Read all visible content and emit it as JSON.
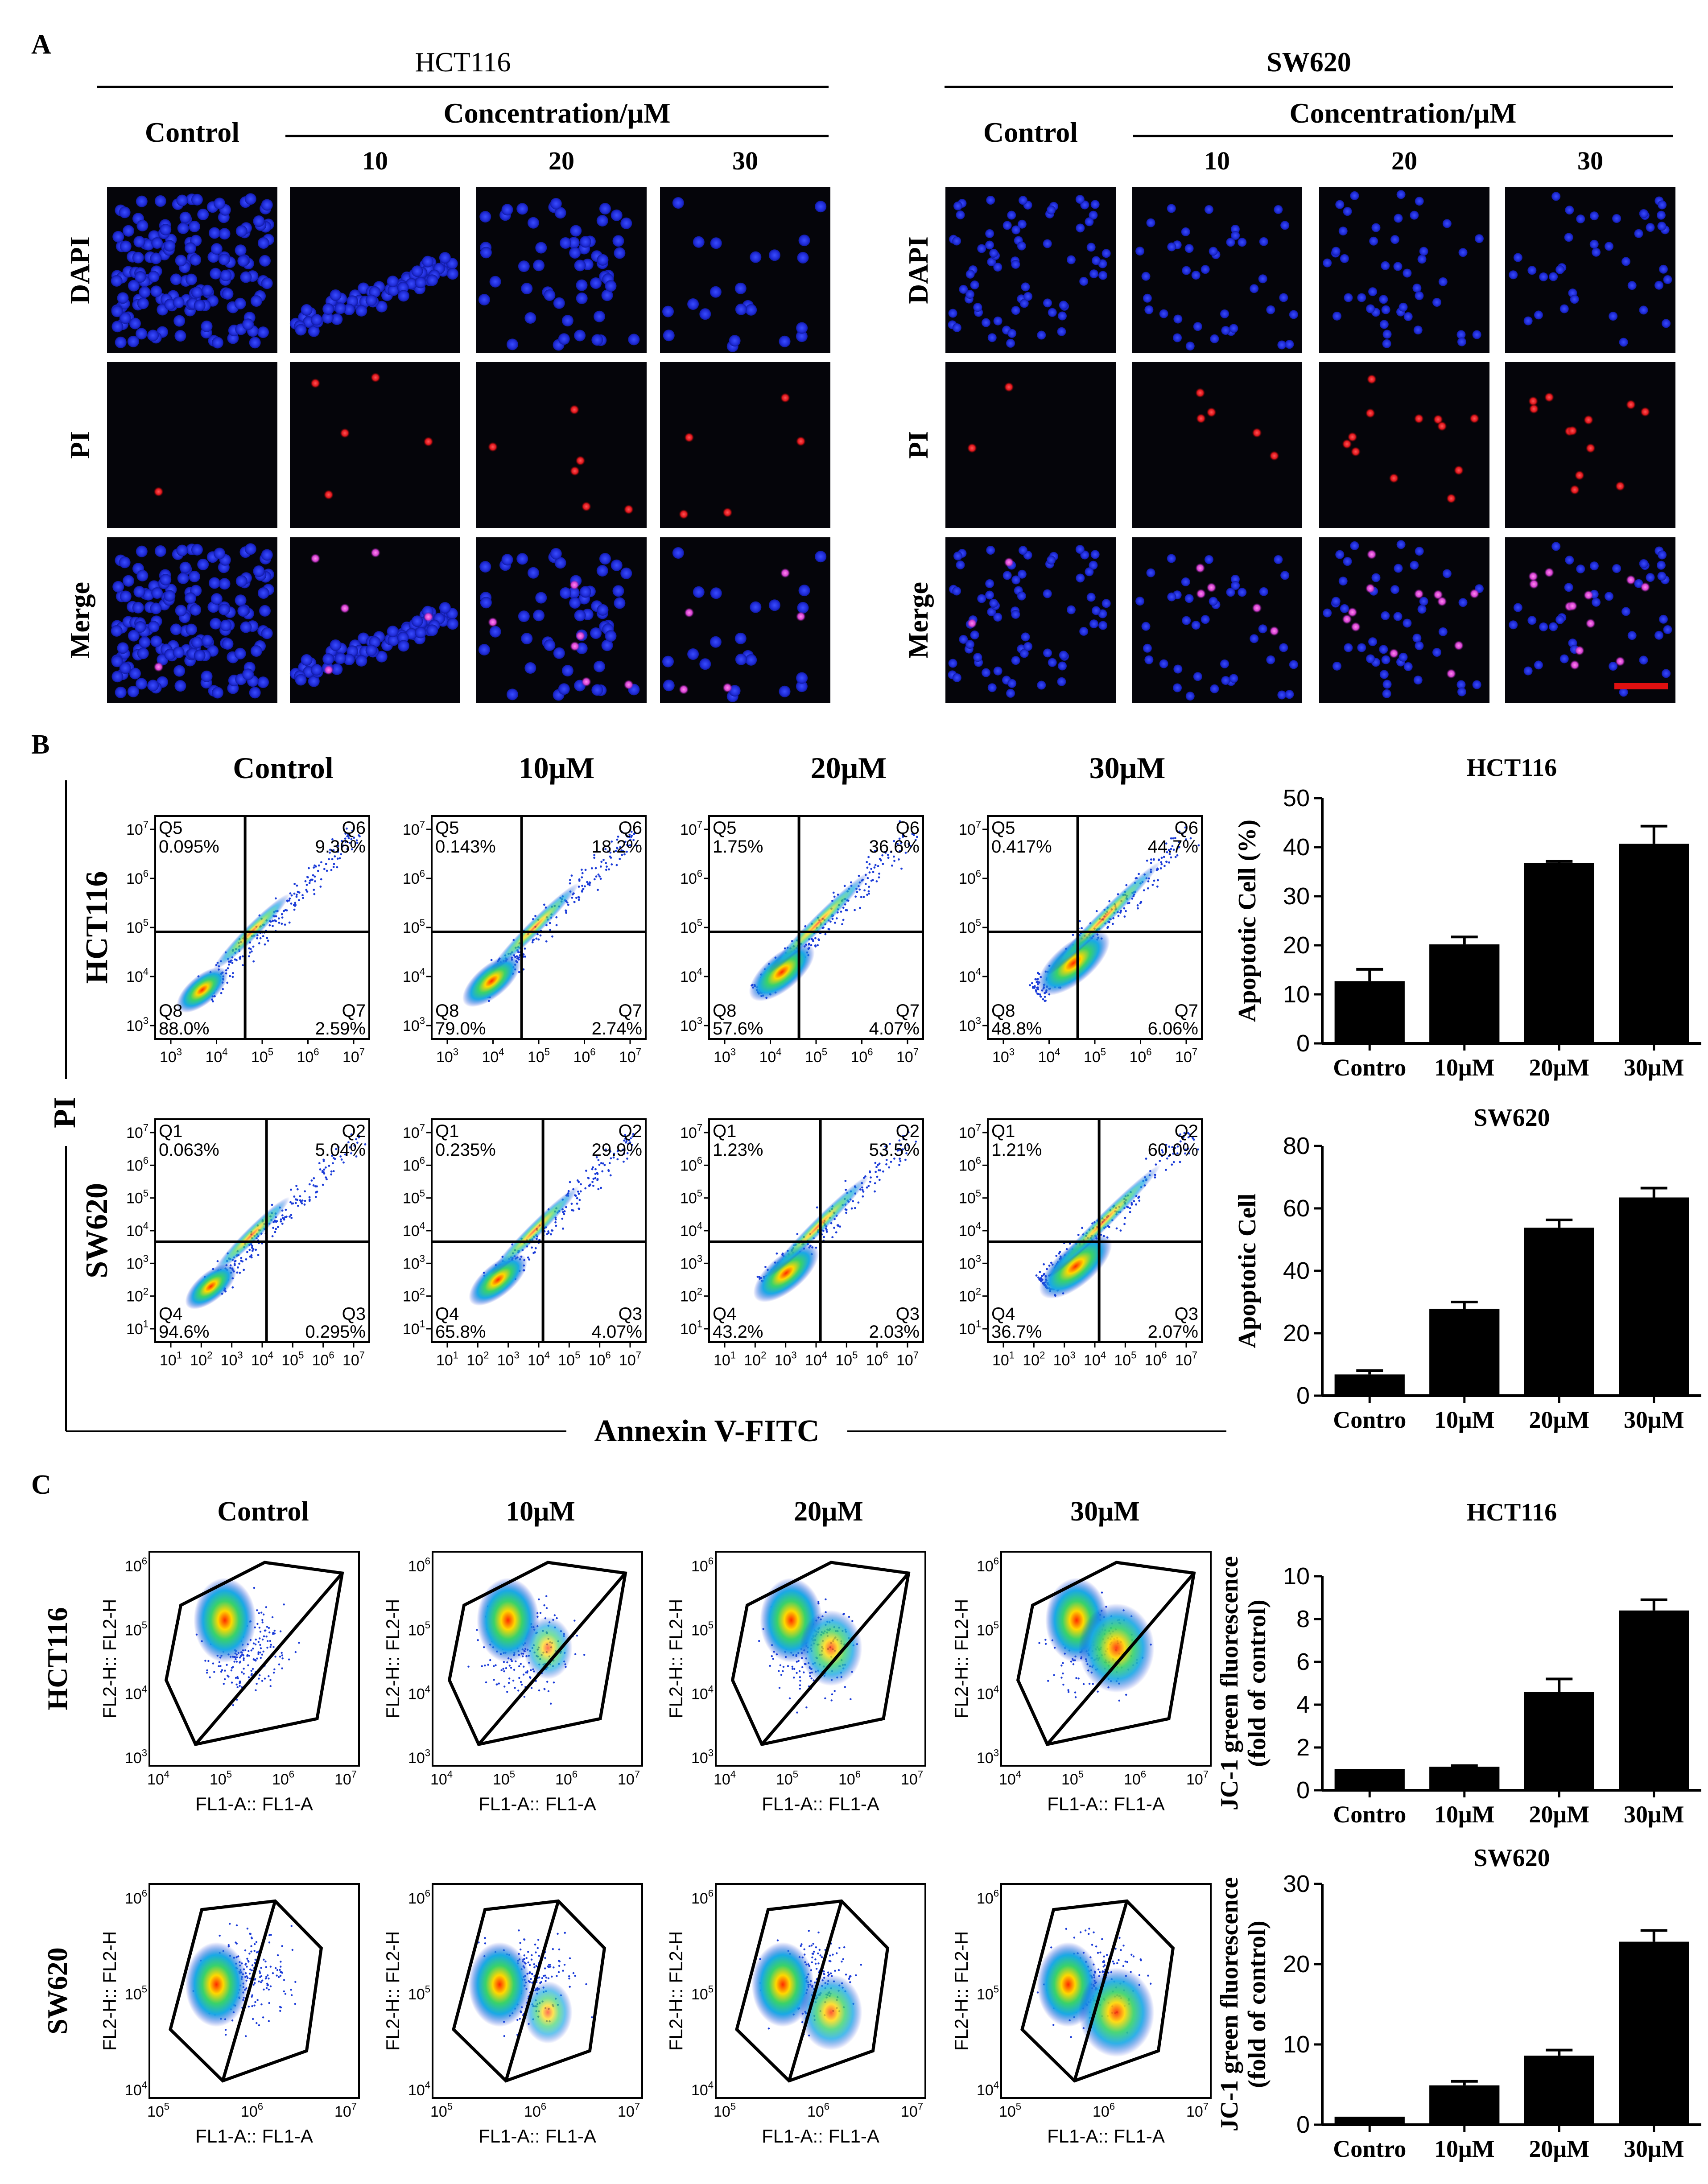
{
  "panel_letters": [
    "A",
    "B",
    "C"
  ],
  "panel_a": {
    "groups": [
      {
        "cell": "HCT116",
        "control": "Control",
        "conc_header": "Concentration/μM",
        "concentrations": [
          "10",
          "20",
          "30"
        ]
      },
      {
        "cell": "SW620",
        "control": "Control",
        "conc_header": "Concentration/μM",
        "concentrations": [
          "10",
          "20",
          "30"
        ]
      }
    ],
    "row_labels": [
      "DAPI",
      "PI",
      "Merge"
    ],
    "colors": {
      "dapi": "#1f2bd6",
      "pi": "#e0151b",
      "merge_pink": "#d63fd0",
      "scale_bar": "#e01010"
    }
  },
  "panel_b": {
    "col_headers": [
      "Control",
      "10μM",
      "20μM",
      "30μM"
    ],
    "row_labels": [
      "HCT116",
      "SW620"
    ],
    "y_axis_title": "PI",
    "x_axis_title": "Annexin V-FITC",
    "hct116_plots": [
      {
        "q_tl": "Q5",
        "v_tl": "0.095%",
        "q_tr": "Q6",
        "v_tr": "9.36%",
        "q_bl": "Q8",
        "v_bl": "88.0%",
        "q_br": "Q7",
        "v_br": "2.59%"
      },
      {
        "q_tl": "Q5",
        "v_tl": "0.143%",
        "q_tr": "Q6",
        "v_tr": "18.2%",
        "q_bl": "Q8",
        "v_bl": "79.0%",
        "q_br": "Q7",
        "v_br": "2.74%"
      },
      {
        "q_tl": "Q5",
        "v_tl": "1.75%",
        "q_tr": "Q6",
        "v_tr": "36.6%",
        "q_bl": "Q8",
        "v_bl": "57.6%",
        "q_br": "Q7",
        "v_br": "4.07%"
      },
      {
        "q_tl": "Q5",
        "v_tl": "0.417%",
        "q_tr": "Q6",
        "v_tr": "44.7%",
        "q_bl": "Q8",
        "v_bl": "48.8%",
        "q_br": "Q7",
        "v_br": "6.06%"
      }
    ],
    "sw620_plots": [
      {
        "q_tl": "Q1",
        "v_tl": "0.063%",
        "q_tr": "Q2",
        "v_tr": "5.04%",
        "q_bl": "Q4",
        "v_bl": "94.6%",
        "q_br": "Q3",
        "v_br": "0.295%"
      },
      {
        "q_tl": "Q1",
        "v_tl": "0.235%",
        "q_tr": "Q2",
        "v_tr": "29.9%",
        "q_bl": "Q4",
        "v_bl": "65.8%",
        "q_br": "Q3",
        "v_br": "4.07%"
      },
      {
        "q_tl": "Q1",
        "v_tl": "1.23%",
        "q_tr": "Q2",
        "v_tr": "53.5%",
        "q_bl": "Q4",
        "v_bl": "43.2%",
        "q_br": "Q3",
        "v_br": "2.03%"
      },
      {
        "q_tl": "Q1",
        "v_tl": "1.21%",
        "q_tr": "Q2",
        "v_tr": "60.0%",
        "q_bl": "Q4",
        "v_bl": "36.7%",
        "q_br": "Q3",
        "v_br": "2.07%"
      }
    ],
    "hct_x_ticks": [
      "10^3",
      "10^4",
      "10^5",
      "10^6",
      "10^7"
    ],
    "hct_y_ticks": [
      "10^3",
      "10^4",
      "10^5",
      "10^6",
      "10^7"
    ],
    "sw_x_ticks": [
      "10^1",
      "10^2",
      "10^3",
      "10^4",
      "10^5",
      "10^6",
      "10^7"
    ],
    "sw_y_ticks": [
      "10^1",
      "10^2",
      "10^3",
      "10^4",
      "10^5",
      "10^6",
      "10^7"
    ]
  },
  "panel_c": {
    "col_headers": [
      "Control",
      "10μM",
      "20μM",
      "30μM"
    ],
    "row_labels": [
      "HCT116",
      "SW620"
    ],
    "x_axis_label": "FL1-A:: FL1-A",
    "y_axis_label": "FL2-H:: FL2-H",
    "hct_x_ticks": [
      "10^4",
      "10^5",
      "10^6",
      "10^7"
    ],
    "hct_y_ticks": [
      "10^3",
      "10^4",
      "10^5",
      "10^6"
    ],
    "sw_x_ticks": [
      "10^5",
      "10^6",
      "10^7"
    ],
    "sw_y_ticks": [
      "10^4",
      "10^5",
      "10^6"
    ]
  },
  "chart_data": [
    {
      "type": "bar",
      "title": "HCT116",
      "categories": [
        "Contro",
        "10μM",
        "20μM",
        "30μM"
      ],
      "values": [
        12.7,
        20.2,
        36.8,
        40.7
      ],
      "errors": [
        2.4,
        1.5,
        0.3,
        3.6
      ],
      "ylabel": "Apoptotic Cell  (%)",
      "ylim": [
        0,
        50
      ],
      "yticks": [
        0,
        10,
        20,
        30,
        40,
        50
      ],
      "color": "#000000"
    },
    {
      "type": "bar",
      "title": "SW620",
      "categories": [
        "Contro",
        "10μM",
        "20μM",
        "30μM"
      ],
      "values": [
        6.8,
        27.8,
        53.8,
        63.5
      ],
      "errors": [
        1.2,
        2.2,
        2.5,
        3.0
      ],
      "ylabel": "Apoptotic Cell",
      "ylim": [
        0,
        80
      ],
      "yticks": [
        0,
        20,
        40,
        60,
        80
      ],
      "color": "#000000"
    },
    {
      "type": "bar",
      "title": "HCT116",
      "categories": [
        "Contro",
        "10μM",
        "20μM",
        "30μM"
      ],
      "values": [
        1.0,
        1.1,
        4.6,
        8.4
      ],
      "errors": [
        0.0,
        0.05,
        0.6,
        0.5
      ],
      "ylabel": "JC-1 green fluorescence\n(fold of control)",
      "ylim": [
        0,
        10
      ],
      "yticks": [
        0,
        2,
        4,
        6,
        8,
        10
      ],
      "color": "#000000"
    },
    {
      "type": "bar",
      "title": "SW620",
      "categories": [
        "Contro",
        "10μM",
        "20μM",
        "30μM"
      ],
      "values": [
        1.0,
        4.9,
        8.6,
        22.8
      ],
      "errors": [
        0.0,
        0.5,
        0.7,
        1.4
      ],
      "ylabel": "JC-1 green fluorescence\n(fold of control)",
      "ylim": [
        0,
        30
      ],
      "yticks": [
        0,
        10,
        20,
        30
      ],
      "color": "#000000"
    }
  ]
}
